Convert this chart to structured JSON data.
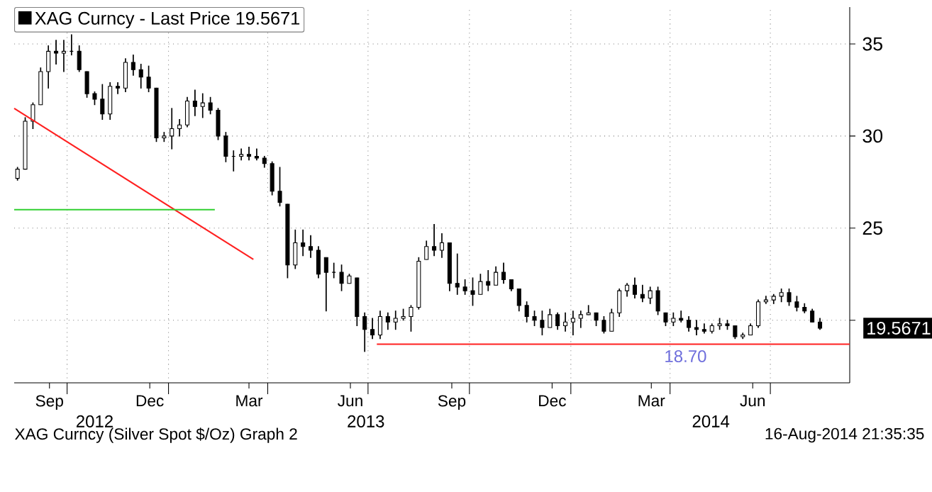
{
  "chart_data": {
    "type": "candlestick",
    "xlim": [
      "2012-08-14",
      "2014-09-11"
    ],
    "xticks": [
      {
        "value": "2012-09-15",
        "label": "Sep"
      },
      {
        "value": "2012-10-01",
        "label": null
      },
      {
        "value": "2012-12-15",
        "label": "Dec"
      },
      {
        "value": "2013-01-01",
        "label": null
      },
      {
        "value": "2013-03-15",
        "label": "Mar"
      },
      {
        "value": "2013-04-01",
        "label": null
      },
      {
        "value": "2013-06-15",
        "label": "Jun"
      },
      {
        "value": "2013-07-01",
        "label": null
      },
      {
        "value": "2013-09-15",
        "label": "Sep"
      },
      {
        "value": "2013-10-01",
        "label": null
      },
      {
        "value": "2013-12-15",
        "label": "Dec"
      },
      {
        "value": "2014-01-01",
        "label": null
      },
      {
        "value": "2014-03-15",
        "label": "Mar"
      },
      {
        "value": "2014-04-01",
        "label": null
      },
      {
        "value": "2014-06-15",
        "label": "Jun"
      },
      {
        "value": "2014-07-01",
        "label": null
      }
    ],
    "ylim": [
      16.6,
      37
    ],
    "yticks": [
      {
        "value": 20,
        "label": null
      },
      25,
      30,
      35
    ],
    "grid": true,
    "legend": "top left",
    "series": [
      {
        "name": "XAG Curncy - Last Price 19.5671",
        "color": "#000000",
        "x": [
          "2012-08-17",
          "2012-08-24",
          "2012-08-31",
          "2012-09-07",
          "2012-09-14",
          "2012-09-21",
          "2012-09-28",
          "2012-10-05",
          "2012-10-12",
          "2012-10-19",
          "2012-10-26",
          "2012-11-02",
          "2012-11-09",
          "2012-11-16",
          "2012-11-23",
          "2012-11-30",
          "2012-12-07",
          "2012-12-14",
          "2012-12-21",
          "2012-12-28",
          "2013-01-04",
          "2013-01-11",
          "2013-01-18",
          "2013-01-25",
          "2013-02-01",
          "2013-02-08",
          "2013-02-15",
          "2013-02-22",
          "2013-03-01",
          "2013-03-08",
          "2013-03-15",
          "2013-03-22",
          "2013-03-29",
          "2013-04-05",
          "2013-04-12",
          "2013-04-19",
          "2013-04-26",
          "2013-05-03",
          "2013-05-10",
          "2013-05-17",
          "2013-05-24",
          "2013-05-31",
          "2013-06-07",
          "2013-06-14",
          "2013-06-21",
          "2013-06-28",
          "2013-07-05",
          "2013-07-12",
          "2013-07-19",
          "2013-07-26",
          "2013-08-02",
          "2013-08-09",
          "2013-08-16",
          "2013-08-23",
          "2013-08-30",
          "2013-09-06",
          "2013-09-13",
          "2013-09-20",
          "2013-09-27",
          "2013-10-04",
          "2013-10-11",
          "2013-10-18",
          "2013-10-25",
          "2013-11-01",
          "2013-11-08",
          "2013-11-15",
          "2013-11-22",
          "2013-11-29",
          "2013-12-06",
          "2013-12-13",
          "2013-12-20",
          "2013-12-27",
          "2014-01-03",
          "2014-01-10",
          "2014-01-17",
          "2014-01-24",
          "2014-01-31",
          "2014-02-07",
          "2014-02-14",
          "2014-02-21",
          "2014-02-28",
          "2014-03-07",
          "2014-03-14",
          "2014-03-21",
          "2014-03-28",
          "2014-04-04",
          "2014-04-11",
          "2014-04-18",
          "2014-04-25",
          "2014-05-02",
          "2014-05-09",
          "2014-05-16",
          "2014-05-23",
          "2014-05-30",
          "2014-06-06",
          "2014-06-13",
          "2014-06-20",
          "2014-06-27",
          "2014-07-04",
          "2014-07-11",
          "2014-07-18",
          "2014-07-25",
          "2014-08-01",
          "2014-08-08",
          "2014-08-15"
        ],
        "ohlc": [
          [
            27.7,
            28.3,
            27.6,
            28.2
          ],
          [
            28.2,
            31.0,
            28.2,
            30.8
          ],
          [
            30.8,
            31.8,
            30.4,
            31.7
          ],
          [
            31.7,
            33.7,
            31.7,
            33.5
          ],
          [
            33.5,
            34.9,
            32.6,
            34.6
          ],
          [
            34.6,
            35.2,
            33.9,
            34.5
          ],
          [
            34.5,
            35.2,
            33.5,
            34.6
          ],
          [
            34.6,
            35.5,
            34.4,
            34.6
          ],
          [
            34.6,
            34.9,
            33.5,
            33.6
          ],
          [
            33.5,
            33.5,
            32.1,
            32.3
          ],
          [
            32.3,
            32.4,
            31.7,
            32.0
          ],
          [
            32.0,
            32.8,
            30.9,
            31.2
          ],
          [
            31.2,
            32.9,
            30.9,
            32.7
          ],
          [
            32.7,
            32.9,
            32.3,
            32.6
          ],
          [
            32.6,
            34.2,
            32.4,
            34.0
          ],
          [
            34.0,
            34.4,
            33.3,
            33.6
          ],
          [
            33.6,
            33.9,
            32.6,
            33.2
          ],
          [
            33.2,
            33.8,
            32.4,
            32.6
          ],
          [
            32.6,
            32.6,
            29.7,
            29.9
          ],
          [
            29.9,
            30.2,
            29.7,
            30.0
          ],
          [
            30.0,
            31.5,
            29.3,
            30.4
          ],
          [
            30.4,
            30.9,
            30.0,
            30.6
          ],
          [
            30.6,
            32.1,
            30.5,
            31.9
          ],
          [
            31.9,
            32.5,
            31.1,
            31.6
          ],
          [
            31.6,
            32.3,
            31.0,
            31.8
          ],
          [
            31.8,
            32.1,
            31.2,
            31.4
          ],
          [
            31.4,
            31.5,
            29.8,
            30.0
          ],
          [
            30.0,
            30.2,
            28.6,
            28.9
          ],
          [
            28.9,
            29.2,
            28.1,
            28.9
          ],
          [
            28.9,
            29.3,
            28.7,
            29.0
          ],
          [
            29.0,
            29.4,
            28.7,
            28.9
          ],
          [
            28.9,
            29.3,
            28.7,
            28.8
          ],
          [
            28.8,
            28.9,
            28.3,
            28.5
          ],
          [
            28.5,
            28.6,
            26.8,
            27.0
          ],
          [
            27.0,
            28.3,
            26.2,
            26.4
          ],
          [
            26.3,
            26.3,
            22.3,
            23.0
          ],
          [
            23.0,
            24.9,
            22.8,
            24.2
          ],
          [
            24.2,
            24.9,
            23.5,
            24.0
          ],
          [
            24.0,
            24.6,
            23.4,
            23.8
          ],
          [
            23.8,
            24.0,
            22.3,
            22.5
          ],
          [
            23.4,
            23.4,
            20.5,
            22.6
          ],
          [
            22.6,
            23.1,
            22.3,
            22.6
          ],
          [
            22.6,
            23.0,
            21.6,
            22.0
          ],
          [
            22.0,
            22.5,
            22.0,
            22.4
          ],
          [
            22.3,
            22.3,
            19.7,
            20.2
          ],
          [
            20.2,
            20.4,
            18.3,
            19.5
          ],
          [
            19.5,
            20.1,
            19.0,
            19.2
          ],
          [
            19.2,
            20.5,
            19.0,
            20.2
          ],
          [
            20.2,
            20.4,
            19.5,
            19.9
          ],
          [
            19.9,
            20.5,
            19.5,
            20.1
          ],
          [
            20.1,
            20.6,
            20.0,
            20.2
          ],
          [
            20.2,
            20.8,
            19.4,
            20.7
          ],
          [
            20.7,
            23.4,
            20.6,
            23.2
          ],
          [
            23.3,
            24.3,
            23.3,
            24.0
          ],
          [
            24.0,
            25.2,
            23.5,
            23.8
          ],
          [
            23.8,
            24.7,
            23.4,
            24.2
          ],
          [
            24.2,
            24.2,
            21.6,
            22.0
          ],
          [
            22.0,
            23.6,
            21.4,
            21.8
          ],
          [
            21.8,
            22.2,
            21.4,
            21.6
          ],
          [
            21.6,
            22.3,
            20.8,
            21.4
          ],
          [
            21.4,
            22.5,
            21.4,
            22.1
          ],
          [
            22.1,
            22.7,
            21.6,
            21.9
          ],
          [
            21.9,
            22.9,
            21.9,
            22.6
          ],
          [
            22.6,
            23.1,
            22.0,
            22.2
          ],
          [
            22.2,
            22.2,
            21.6,
            21.7
          ],
          [
            21.7,
            21.7,
            20.5,
            20.8
          ],
          [
            20.8,
            21.0,
            19.9,
            20.2
          ],
          [
            20.2,
            20.5,
            19.7,
            20.0
          ],
          [
            20.0,
            20.5,
            19.2,
            19.6
          ],
          [
            19.6,
            20.6,
            19.6,
            20.3
          ],
          [
            20.3,
            20.4,
            19.5,
            19.7
          ],
          [
            19.7,
            20.4,
            19.4,
            19.9
          ],
          [
            19.9,
            20.5,
            19.2,
            20.1
          ],
          [
            20.1,
            20.5,
            19.6,
            20.3
          ],
          [
            20.3,
            20.8,
            20.3,
            20.4
          ],
          [
            20.4,
            20.4,
            19.7,
            20.0
          ],
          [
            20.0,
            20.2,
            19.3,
            19.4
          ],
          [
            19.4,
            20.6,
            19.4,
            20.4
          ],
          [
            20.4,
            21.7,
            20.2,
            21.6
          ],
          [
            21.6,
            22.0,
            21.3,
            21.9
          ],
          [
            21.9,
            22.3,
            21.2,
            21.4
          ],
          [
            21.4,
            21.9,
            21.0,
            21.2
          ],
          [
            21.2,
            21.8,
            20.9,
            21.6
          ],
          [
            21.6,
            21.8,
            20.3,
            20.5
          ],
          [
            20.4,
            20.4,
            19.7,
            19.9
          ],
          [
            19.9,
            20.4,
            19.7,
            20.1
          ],
          [
            20.1,
            20.5,
            19.9,
            20.0
          ],
          [
            20.0,
            20.2,
            19.4,
            19.6
          ],
          [
            19.6,
            20.0,
            19.2,
            19.5
          ],
          [
            19.5,
            19.8,
            19.3,
            19.4
          ],
          [
            19.4,
            19.8,
            19.3,
            19.7
          ],
          [
            19.7,
            20.1,
            19.5,
            19.8
          ],
          [
            19.8,
            20.0,
            19.5,
            19.7
          ],
          [
            19.7,
            19.7,
            19.0,
            19.1
          ],
          [
            19.1,
            19.3,
            19.0,
            19.2
          ],
          [
            19.2,
            19.8,
            19.2,
            19.7
          ],
          [
            19.7,
            21.1,
            19.6,
            21.0
          ],
          [
            21.0,
            21.3,
            20.9,
            21.1
          ],
          [
            21.1,
            21.4,
            20.9,
            21.3
          ],
          [
            21.3,
            21.7,
            21.0,
            21.5
          ],
          [
            21.5,
            21.7,
            20.8,
            21.0
          ],
          [
            21.0,
            21.3,
            20.5,
            20.7
          ],
          [
            20.7,
            20.9,
            20.4,
            20.5
          ],
          [
            20.5,
            20.6,
            19.9,
            19.9
          ],
          [
            19.9,
            20.1,
            19.5,
            19.5671
          ]
        ]
      },
      {
        "type": "line",
        "color": "#ff2020",
        "x": [
          "2012-08-14",
          "2013-03-19"
        ],
        "values": [
          31.5,
          23.3
        ]
      },
      {
        "type": "line",
        "color": "#30d030",
        "x": [
          "2012-08-14",
          "2013-02-12"
        ],
        "values": [
          26.0,
          26.0
        ]
      },
      {
        "type": "line",
        "color": "#ff2020",
        "x": [
          "2013-07-09",
          "2014-09-11"
        ],
        "values": [
          18.7,
          18.7
        ]
      }
    ],
    "x2lim": [
      "2012-08-14",
      "2014-09-11"
    ],
    "x2ticks": [
      {
        "value": "2012-10-26",
        "label": "2012"
      },
      {
        "value": "2013-06-29",
        "label": "2013"
      },
      {
        "value": "2014-05-08",
        "label": "2014"
      }
    ],
    "annotations": [
      {
        "text": "18.70",
        "x": "2014-04-15",
        "y": 18.7
      },
      "19.5671",
      "XAG Curncy (Silver Spot $/Oz) Graph 2",
      "16-Aug-2014 21:35:35"
    ]
  }
}
